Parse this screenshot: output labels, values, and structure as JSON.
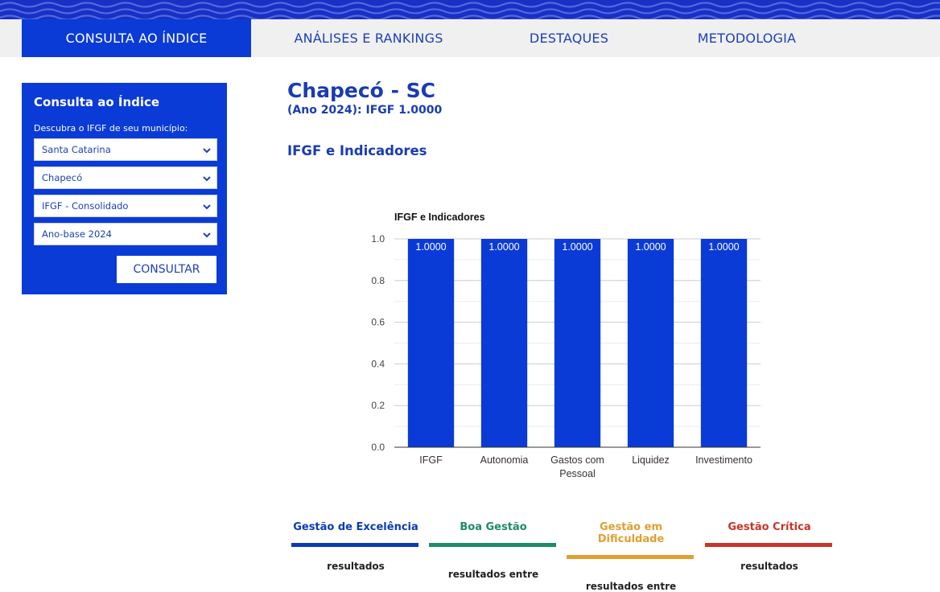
{
  "nav": {
    "items": [
      {
        "label": "CONSULTA AO ÍNDICE",
        "active": true
      },
      {
        "label": "ANÁLISES E RANKINGS",
        "active": false
      },
      {
        "label": "DESTAQUES",
        "active": false
      },
      {
        "label": "METODOLOGIA",
        "active": false
      }
    ]
  },
  "sidebar": {
    "title": "Consulta ao Índice",
    "description": "Descubra o IFGF de seu município:",
    "selects": [
      {
        "value": "Santa Catarina"
      },
      {
        "value": "Chapecó"
      },
      {
        "value": "IFGF - Consolidado"
      },
      {
        "value": "Ano-base 2024"
      }
    ],
    "button_label": "CONSULTAR"
  },
  "main": {
    "title": "Chapecó - SC",
    "subtitle": "(Ano 2024): IFGF 1.0000",
    "section_title": "IFGF e Indicadores"
  },
  "chart_data": {
    "type": "bar",
    "title": "IFGF e Indicadores",
    "categories": [
      "IFGF",
      "Autonomia",
      "Gastos com Pessoal",
      "Liquidez",
      "Investimento"
    ],
    "category_lines": [
      [
        "IFGF"
      ],
      [
        "Autonomia"
      ],
      [
        "Gastos com",
        "Pessoal"
      ],
      [
        "Liquidez"
      ],
      [
        "Investimento"
      ]
    ],
    "values": [
      1.0,
      1.0,
      1.0,
      1.0,
      1.0
    ],
    "data_labels": [
      "1.0000",
      "1.0000",
      "1.0000",
      "1.0000",
      "1.0000"
    ],
    "y_ticks": [
      "0.0",
      "0.2",
      "0.4",
      "0.6",
      "0.8",
      "1.0"
    ],
    "ylim": [
      0,
      1.0
    ],
    "grid": true,
    "bar_color": "#0a3bd6"
  },
  "legend": [
    {
      "label": "Gestão de Excelência",
      "color": "#0a3bb0",
      "text": "resultados"
    },
    {
      "label": "Boa Gestão",
      "color": "#1e8a6a",
      "text": "resultados entre"
    },
    {
      "label": "Gestão em Dificuldade",
      "color": "#e0a030",
      "text": "resultados entre"
    },
    {
      "label": "Gestão Crítica",
      "color": "#c8352a",
      "text": "resultados"
    }
  ],
  "colors": {
    "primary": "#0a3bd6",
    "nav_bg": "#f0f0f0",
    "title_text": "#1a3cb0"
  }
}
